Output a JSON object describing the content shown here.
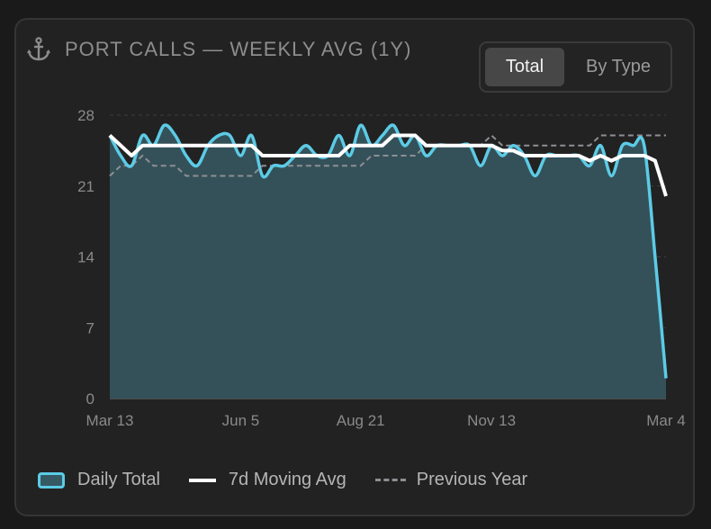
{
  "title": "PORT CALLS — WEEKLY AVG (1Y)",
  "toggle": {
    "total_label": "Total",
    "by_type_label": "By Type"
  },
  "legend": {
    "daily_total": "Daily Total",
    "moving_avg": "7d Moving Avg",
    "previous_year": "Previous Year"
  },
  "colors": {
    "daily_total_line": "#5ccbe6",
    "daily_total_fill": "#345159",
    "moving_avg": "#ffffff",
    "previous_year": "#8e8e94",
    "grid": "#3e3e3e",
    "axis_text": "#8a8a8a"
  },
  "chart_data": {
    "type": "area",
    "ylim": [
      0,
      28
    ],
    "yticks": [
      0,
      7,
      14,
      21,
      28
    ],
    "x_range": [
      0,
      51
    ],
    "xticks": [
      {
        "x": 0,
        "label": "Mar 13"
      },
      {
        "x": 12,
        "label": "Jun 5"
      },
      {
        "x": 23,
        "label": "Aug 21"
      },
      {
        "x": 35,
        "label": "Nov 13"
      },
      {
        "x": 51,
        "label": "Mar 4"
      }
    ],
    "series": [
      {
        "name": "Daily Total",
        "style": "area",
        "values": [
          26,
          24,
          23,
          26,
          25,
          27,
          26,
          24,
          23,
          25,
          26,
          26,
          24,
          26,
          22,
          23,
          23,
          24,
          25,
          24,
          24,
          26,
          24,
          27,
          25,
          26,
          27,
          25,
          26,
          24,
          25,
          25,
          25,
          25,
          23,
          25,
          24,
          25,
          24,
          22,
          24,
          24,
          24,
          24,
          23,
          25,
          22,
          25,
          25,
          25,
          14,
          2
        ]
      },
      {
        "name": "7d Moving Avg",
        "style": "solid",
        "values": [
          26,
          25,
          24,
          25,
          25,
          25,
          25,
          25,
          25,
          25,
          25,
          25,
          25,
          25,
          24,
          24,
          24,
          24,
          24,
          24,
          24,
          24,
          25,
          25,
          25,
          25,
          26,
          26,
          26,
          25,
          25,
          25,
          25,
          25,
          25,
          25,
          24.5,
          24.5,
          24,
          24,
          24,
          24,
          24,
          24,
          23.5,
          24,
          23.5,
          24,
          24,
          24,
          23.5,
          20
        ]
      },
      {
        "name": "Previous Year",
        "style": "dashed",
        "values": [
          22,
          23,
          23,
          24,
          23,
          23,
          23,
          22,
          22,
          22,
          22,
          22,
          22,
          22,
          23,
          23,
          23,
          23,
          23,
          23,
          23,
          23,
          23,
          23,
          24,
          24,
          24,
          24,
          24,
          25,
          25,
          25,
          25,
          25,
          25,
          26,
          25,
          25,
          25,
          25,
          25,
          25,
          25,
          25,
          25,
          26,
          26,
          26,
          26,
          26,
          26,
          26
        ]
      }
    ]
  }
}
